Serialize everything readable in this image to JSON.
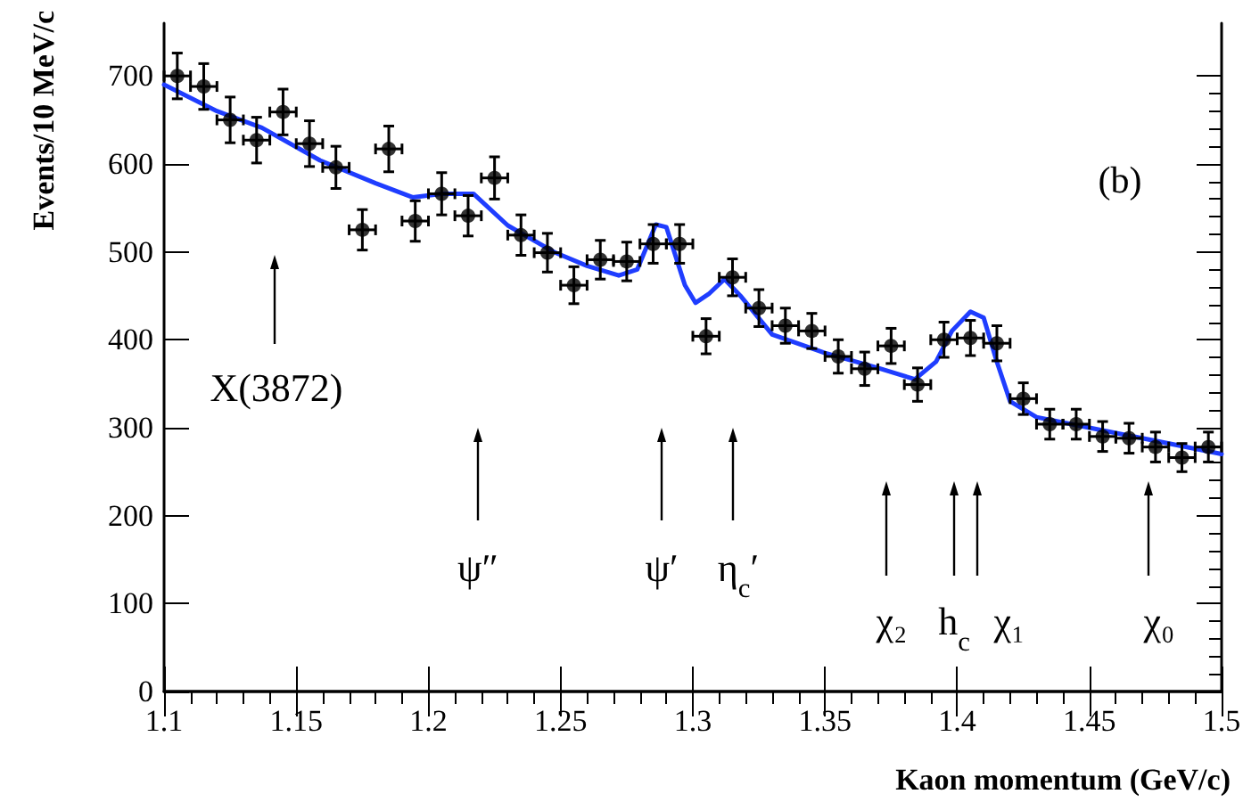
{
  "chart_data": {
    "type": "scatter",
    "xlabel": "Kaon momentum (GeV/c)",
    "ylabel": "Events/10 MeV/c",
    "xlim": [
      1.1,
      1.5
    ],
    "xticks": [
      1.1,
      1.15,
      1.2,
      1.25,
      1.3,
      1.35,
      1.4,
      1.45,
      1.5
    ],
    "ylim": [
      0,
      760
    ],
    "yticks": [
      0,
      100,
      200,
      300,
      400,
      500,
      600,
      700
    ],
    "grid": false,
    "marker": "circle",
    "series": [
      {
        "type": "scatter",
        "color": "#000000",
        "x": [
          1.105,
          1.115,
          1.125,
          1.135,
          1.145,
          1.155,
          1.165,
          1.175,
          1.185,
          1.195,
          1.205,
          1.215,
          1.225,
          1.235,
          1.245,
          1.255,
          1.265,
          1.275,
          1.285,
          1.295,
          1.305,
          1.315,
          1.325,
          1.335,
          1.345,
          1.355,
          1.365,
          1.375,
          1.385,
          1.395,
          1.405,
          1.415,
          1.425,
          1.435,
          1.445,
          1.455,
          1.465,
          1.475,
          1.485,
          1.495
        ],
        "values": [
          700,
          688,
          650,
          627,
          659,
          623,
          596,
          525,
          617,
          535,
          566,
          541,
          584,
          519,
          499,
          462,
          491,
          489,
          509,
          509,
          404,
          471,
          436,
          416,
          410,
          381,
          367,
          393,
          349,
          400,
          402,
          396,
          333,
          304,
          304,
          290,
          288,
          278,
          266,
          278
        ],
        "errors": [
          26,
          26,
          26,
          26,
          26,
          26,
          24,
          23,
          26,
          23,
          24,
          23,
          24,
          23,
          22,
          21,
          22,
          22,
          22,
          22,
          20,
          21,
          21,
          20,
          20,
          19,
          19,
          20,
          19,
          20,
          20,
          20,
          18,
          17,
          17,
          17,
          17,
          17,
          16,
          17
        ],
        "xerrors": [
          0.005,
          0.005,
          0.005,
          0.005,
          0.005,
          0.005,
          0.005,
          0.005,
          0.005,
          0.005,
          0.005,
          0.005,
          0.005,
          0.005,
          0.005,
          0.005,
          0.005,
          0.005,
          0.005,
          0.005,
          0.005,
          0.005,
          0.005,
          0.005,
          0.005,
          0.005,
          0.005,
          0.005,
          0.005,
          0.005,
          0.005,
          0.005,
          0.005,
          0.005,
          0.005,
          0.005,
          0.005,
          0.005,
          0.005,
          0.005
        ]
      },
      {
        "type": "line",
        "color": "#1f3dff",
        "line_style": "solid",
        "marker": "none",
        "x": [
          1.1,
          1.12,
          1.137,
          1.159,
          1.18,
          1.194,
          1.205,
          1.217,
          1.23,
          1.248,
          1.26,
          1.272,
          1.279,
          1.286,
          1.29,
          1.297,
          1.301,
          1.306,
          1.312,
          1.318,
          1.33,
          1.35,
          1.37,
          1.384,
          1.392,
          1.398,
          1.405,
          1.41,
          1.415,
          1.42,
          1.43,
          1.45,
          1.47,
          1.5
        ],
        "values": [
          690,
          660,
          641,
          604,
          578,
          562,
          566,
          566,
          530,
          499,
          484,
          473,
          480,
          531,
          528,
          462,
          442,
          452,
          469,
          450,
          406,
          385,
          368,
          355,
          375,
          410,
          432,
          425,
          375,
          330,
          312,
          300,
          288,
          270
        ]
      }
    ],
    "annotations": [
      "(b)",
      "X(3872)",
      "ψ″",
      "ψ′",
      "η$_{c}$′",
      "χ₂",
      "h$_{c}$",
      "χ₁",
      "χ₀"
    ]
  }
}
